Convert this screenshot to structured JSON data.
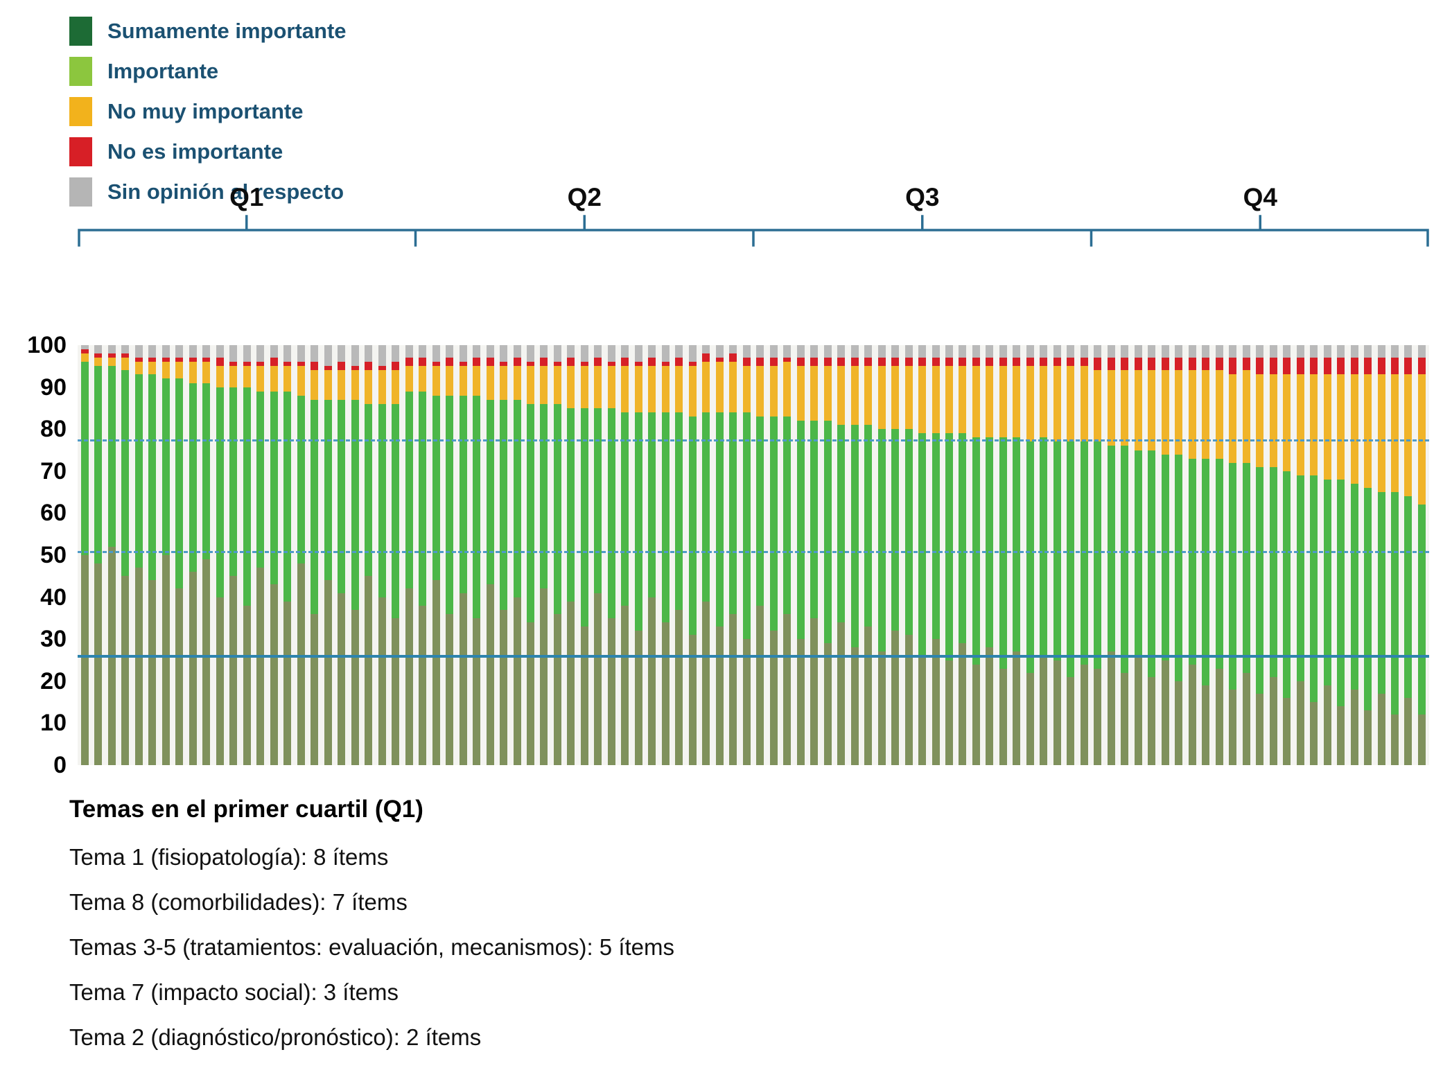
{
  "legend": {
    "items": [
      {
        "label": "Sumamente importante",
        "color": "#1d6b35"
      },
      {
        "label": "Importante",
        "color": "#8cc63e"
      },
      {
        "label": "No muy importante",
        "color": "#f2b21c"
      },
      {
        "label": "No es importante",
        "color": "#d71f26"
      },
      {
        "label": "Sin opinión al respecto",
        "color": "#b5b5b5"
      }
    ]
  },
  "chart_data": {
    "type": "bar",
    "subtype": "stacked-percent",
    "title": "",
    "xlabel": "",
    "ylabel": "",
    "ylim": [
      0,
      100
    ],
    "yticks": [
      0,
      10,
      20,
      30,
      40,
      50,
      60,
      70,
      80,
      90,
      100
    ],
    "grid": false,
    "legend_position": "top-left",
    "series_keys": [
      "sumamente-importante",
      "importante",
      "no-muy-importante",
      "no-es-importante",
      "sin-opinion"
    ],
    "series_labels": [
      "Sumamente importante",
      "Importante",
      "No muy importante",
      "No es importante",
      "Sin opinión al respecto"
    ],
    "colors": [
      "#7f915c",
      "#4cb748",
      "#f0b429",
      "#d62027",
      "#b9b9b9"
    ],
    "quartiles": [
      {
        "label": "Q1",
        "count": 25
      },
      {
        "label": "Q2",
        "count": 25
      },
      {
        "label": "Q3",
        "count": 25
      },
      {
        "label": "Q4",
        "count": 25
      }
    ],
    "reference_lines": [
      {
        "value": 77,
        "style": "dashed",
        "color": "#4e9ac8"
      },
      {
        "value": 50.5,
        "style": "dashed",
        "color": "#4e9ac8"
      },
      {
        "value": 25.5,
        "style": "solid",
        "color": "#2d84ad"
      }
    ],
    "bars": [
      [
        50,
        46,
        2,
        1,
        1
      ],
      [
        48,
        47,
        2,
        1,
        2
      ],
      [
        52,
        43,
        2,
        1,
        2
      ],
      [
        45,
        49,
        3,
        1,
        2
      ],
      [
        47,
        46,
        3,
        1,
        3
      ],
      [
        44,
        49,
        3,
        1,
        3
      ],
      [
        50,
        42,
        4,
        1,
        3
      ],
      [
        42,
        50,
        4,
        1,
        3
      ],
      [
        46,
        45,
        5,
        1,
        3
      ],
      [
        49,
        42,
        5,
        1,
        3
      ],
      [
        40,
        50,
        5,
        2,
        3
      ],
      [
        45,
        45,
        5,
        1,
        4
      ],
      [
        38,
        52,
        5,
        1,
        4
      ],
      [
        47,
        42,
        6,
        1,
        4
      ],
      [
        43,
        46,
        6,
        2,
        3
      ],
      [
        39,
        50,
        6,
        1,
        4
      ],
      [
        48,
        40,
        7,
        1,
        4
      ],
      [
        36,
        51,
        7,
        2,
        4
      ],
      [
        44,
        43,
        7,
        1,
        5
      ],
      [
        41,
        46,
        7,
        2,
        4
      ],
      [
        37,
        50,
        7,
        1,
        5
      ],
      [
        45,
        41,
        8,
        2,
        4
      ],
      [
        40,
        46,
        8,
        1,
        5
      ],
      [
        35,
        51,
        8,
        2,
        4
      ],
      [
        42,
        47,
        6,
        2,
        3
      ],
      [
        38,
        51,
        6,
        2,
        3
      ],
      [
        44,
        44,
        7,
        1,
        4
      ],
      [
        36,
        52,
        7,
        2,
        3
      ],
      [
        41,
        47,
        7,
        1,
        4
      ],
      [
        35,
        53,
        7,
        2,
        3
      ],
      [
        43,
        44,
        8,
        2,
        3
      ],
      [
        37,
        50,
        8,
        1,
        4
      ],
      [
        40,
        47,
        8,
        2,
        3
      ],
      [
        34,
        52,
        9,
        1,
        4
      ],
      [
        42,
        44,
        9,
        2,
        3
      ],
      [
        36,
        50,
        9,
        1,
        4
      ],
      [
        39,
        46,
        10,
        2,
        3
      ],
      [
        33,
        52,
        10,
        1,
        4
      ],
      [
        41,
        44,
        10,
        2,
        3
      ],
      [
        35,
        50,
        10,
        1,
        4
      ],
      [
        38,
        46,
        11,
        2,
        3
      ],
      [
        32,
        52,
        11,
        1,
        4
      ],
      [
        40,
        44,
        11,
        2,
        3
      ],
      [
        34,
        50,
        11,
        1,
        4
      ],
      [
        37,
        47,
        11,
        2,
        3
      ],
      [
        31,
        52,
        12,
        1,
        4
      ],
      [
        39,
        45,
        12,
        2,
        2
      ],
      [
        33,
        51,
        12,
        1,
        3
      ],
      [
        36,
        48,
        12,
        2,
        2
      ],
      [
        30,
        54,
        11,
        2,
        3
      ],
      [
        38,
        45,
        12,
        2,
        3
      ],
      [
        32,
        51,
        12,
        2,
        3
      ],
      [
        36,
        47,
        13,
        1,
        3
      ],
      [
        30,
        52,
        13,
        2,
        3
      ],
      [
        35,
        47,
        13,
        2,
        3
      ],
      [
        29,
        53,
        13,
        2,
        3
      ],
      [
        34,
        47,
        14,
        2,
        3
      ],
      [
        28,
        53,
        14,
        2,
        3
      ],
      [
        33,
        48,
        14,
        2,
        3
      ],
      [
        27,
        53,
        15,
        2,
        3
      ],
      [
        32,
        48,
        15,
        2,
        3
      ],
      [
        31,
        49,
        15,
        2,
        3
      ],
      [
        26,
        53,
        16,
        2,
        3
      ],
      [
        30,
        49,
        16,
        2,
        3
      ],
      [
        25,
        54,
        16,
        2,
        3
      ],
      [
        29,
        50,
        16,
        2,
        3
      ],
      [
        24,
        54,
        17,
        2,
        3
      ],
      [
        28,
        50,
        17,
        2,
        3
      ],
      [
        23,
        55,
        17,
        2,
        3
      ],
      [
        27,
        51,
        17,
        2,
        3
      ],
      [
        22,
        55,
        18,
        2,
        3
      ],
      [
        26,
        52,
        17,
        2,
        3
      ],
      [
        25,
        52,
        18,
        2,
        3
      ],
      [
        21,
        56,
        18,
        2,
        3
      ],
      [
        24,
        53,
        18,
        2,
        3
      ],
      [
        23,
        54,
        17,
        3,
        3
      ],
      [
        27,
        49,
        18,
        3,
        3
      ],
      [
        22,
        54,
        18,
        3,
        3
      ],
      [
        26,
        49,
        19,
        3,
        3
      ],
      [
        21,
        54,
        19,
        3,
        3
      ],
      [
        25,
        49,
        20,
        3,
        3
      ],
      [
        20,
        54,
        20,
        3,
        3
      ],
      [
        24,
        49,
        21,
        3,
        3
      ],
      [
        19,
        54,
        21,
        3,
        3
      ],
      [
        23,
        50,
        21,
        3,
        3
      ],
      [
        18,
        54,
        21,
        4,
        3
      ],
      [
        22,
        50,
        22,
        3,
        3
      ],
      [
        17,
        54,
        22,
        4,
        3
      ],
      [
        21,
        50,
        22,
        4,
        3
      ],
      [
        16,
        54,
        23,
        4,
        3
      ],
      [
        20,
        49,
        24,
        4,
        3
      ],
      [
        15,
        54,
        24,
        4,
        3
      ],
      [
        19,
        49,
        25,
        4,
        3
      ],
      [
        14,
        54,
        25,
        4,
        3
      ],
      [
        18,
        49,
        26,
        4,
        3
      ],
      [
        13,
        53,
        27,
        4,
        3
      ],
      [
        17,
        48,
        28,
        4,
        3
      ],
      [
        12,
        53,
        28,
        4,
        3
      ],
      [
        16,
        48,
        29,
        4,
        3
      ],
      [
        12,
        50,
        31,
        4,
        3
      ]
    ]
  },
  "footer": {
    "heading": "Temas en el primer cuartil (Q1)",
    "lines": [
      "Tema 1 (fisiopatología): 8 ítems",
      "Tema 8 (comorbilidades): 7 ítems",
      "Temas 3-5 (tratamientos: evaluación, mecanismos): 5 ítems",
      "Tema 7 (impacto social): 3 ítems",
      "Tema 2 (diagnóstico/pronóstico): 2 ítems"
    ]
  }
}
